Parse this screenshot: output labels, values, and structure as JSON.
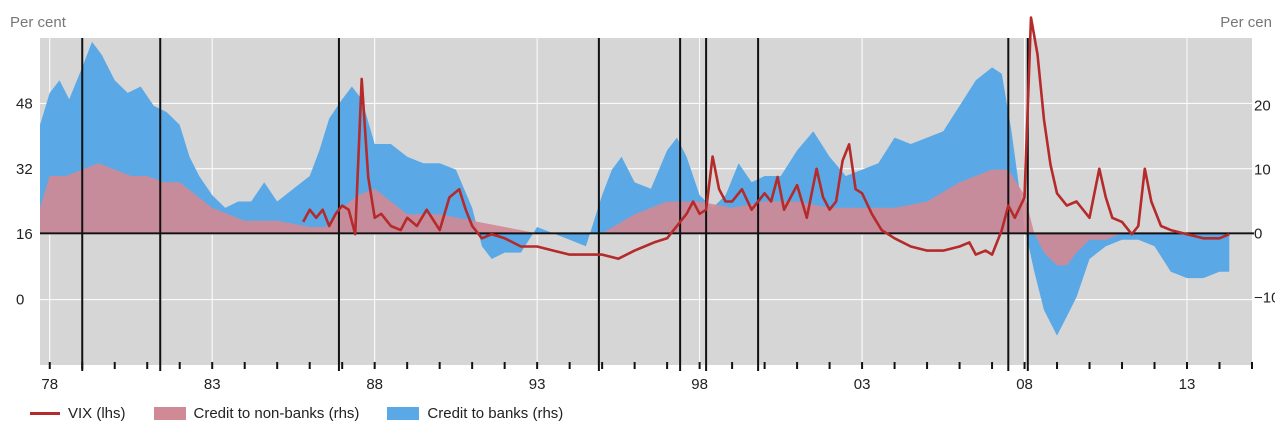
{
  "chart_data": {
    "type": "area",
    "left_axis_unit": "Per cent",
    "right_axis_unit": "Per cen",
    "x_ticks": [
      "78",
      "83",
      "88",
      "93",
      "98",
      "03",
      "08",
      "13"
    ],
    "x_tick_values": [
      1978,
      1983,
      1988,
      1993,
      1998,
      2003,
      2008,
      2013
    ],
    "xlim": [
      1977.7,
      2015.0
    ],
    "y_left": {
      "ticks": [
        "0",
        "16",
        "32",
        "48"
      ],
      "tick_values": [
        0,
        16,
        32,
        48
      ],
      "ylim": [
        -16,
        64
      ]
    },
    "y_right": {
      "ticks": [
        "−10",
        "0",
        "10",
        "20"
      ],
      "tick_values": [
        -10,
        0,
        10,
        20
      ],
      "ylim": [
        -20.6,
        30.6
      ]
    },
    "legend": [
      "VIX (lhs)",
      "Credit to non-banks (rhs)",
      "Credit to banks (rhs)"
    ],
    "colors": {
      "vix": "#b52a2a",
      "non_banks": "#d08a96",
      "banks": "#5aa9e6",
      "panel_bg": "#d6d6d6",
      "grid": "#ffffff"
    },
    "event_lines_x": [
      1979.0,
      1981.4,
      1986.9,
      1994.9,
      1997.4,
      1998.2,
      1999.8,
      2007.5,
      2008.1
    ],
    "series": [
      {
        "name": "Credit to banks (rhs)",
        "axis": "right",
        "x": [
          1977.7,
          1978.0,
          1978.3,
          1978.6,
          1979.0,
          1979.3,
          1979.6,
          1980.0,
          1980.4,
          1980.8,
          1981.2,
          1981.6,
          1982.0,
          1982.3,
          1982.6,
          1983.0,
          1983.4,
          1983.8,
          1984.2,
          1984.6,
          1985.0,
          1985.5,
          1986.0,
          1986.3,
          1986.6,
          1987.0,
          1987.3,
          1987.6,
          1988.0,
          1988.5,
          1989.0,
          1989.5,
          1990.0,
          1990.5,
          1991.0,
          1991.3,
          1991.6,
          1992.0,
          1992.5,
          1993.0,
          1993.5,
          1994.0,
          1994.5,
          1995.0,
          1995.3,
          1995.6,
          1996.0,
          1996.5,
          1997.0,
          1997.3,
          1997.6,
          1998.0,
          1998.4,
          1998.8,
          1999.2,
          1999.6,
          2000.0,
          2000.5,
          2001.0,
          2001.5,
          2002.0,
          2002.5,
          2003.0,
          2003.5,
          2004.0,
          2004.5,
          2005.0,
          2005.5,
          2006.0,
          2006.5,
          2007.0,
          2007.3,
          2007.6,
          2008.0,
          2008.3,
          2008.6,
          2009.0,
          2009.3,
          2009.6,
          2010.0,
          2010.5,
          2011.0,
          2011.5,
          2012.0,
          2012.5,
          2013.0,
          2013.5,
          2014.0,
          2014.3
        ],
        "values": [
          17,
          22,
          24,
          21,
          26,
          30,
          28,
          24,
          22,
          23,
          20,
          19,
          17,
          12,
          9,
          6,
          4,
          5,
          5,
          8,
          5,
          7,
          9,
          13,
          18,
          21,
          23,
          21,
          14,
          14,
          12,
          11,
          11,
          10,
          4,
          -2,
          -4,
          -3,
          -3,
          1,
          0,
          -1,
          -2,
          6,
          10,
          12,
          8,
          7,
          13,
          15,
          12,
          6,
          4,
          6,
          11,
          8,
          9,
          9,
          13,
          16,
          12,
          9,
          10,
          11,
          15,
          14,
          15,
          16,
          20,
          24,
          26,
          25,
          16,
          1,
          -6,
          -12,
          -16,
          -13,
          -10,
          -4,
          -2,
          -1,
          -1,
          -2,
          -6,
          -7,
          -7,
          -6,
          -6
        ]
      },
      {
        "name": "Credit to non-banks (rhs)",
        "axis": "right",
        "x": [
          1977.7,
          1978.0,
          1978.5,
          1979.0,
          1979.5,
          1980.0,
          1980.5,
          1981.0,
          1981.5,
          1982.0,
          1982.5,
          1983.0,
          1983.5,
          1984.0,
          1985.0,
          1986.0,
          1986.5,
          1987.0,
          1987.5,
          1988.0,
          1988.5,
          1989.0,
          1990.0,
          1991.0,
          1992.0,
          1993.0,
          1994.0,
          1995.0,
          1996.0,
          1997.0,
          1998.0,
          1999.0,
          2000.0,
          2001.0,
          2002.0,
          2003.0,
          2004.0,
          2005.0,
          2006.0,
          2006.5,
          2007.0,
          2007.5,
          2008.0,
          2008.3,
          2008.6,
          2009.0,
          2009.3,
          2009.6,
          2010.0,
          2010.5,
          2011.0,
          2012.0,
          2013.0,
          2014.0,
          2014.3
        ],
        "values": [
          4,
          9,
          9,
          10,
          11,
          10,
          9,
          9,
          8,
          8,
          6,
          4,
          3,
          2,
          2,
          1,
          1,
          4,
          6,
          7,
          5,
          3,
          3,
          2,
          1,
          0,
          0,
          0,
          3,
          5,
          5,
          4,
          5,
          5,
          4,
          4,
          4,
          5,
          8,
          9,
          10,
          10,
          6,
          0,
          -3,
          -5,
          -5,
          -3,
          -1,
          -1,
          0,
          0,
          0,
          0,
          0
        ]
      },
      {
        "name": "VIX (lhs)",
        "axis": "left",
        "x": [
          1985.8,
          1986.0,
          1986.2,
          1986.4,
          1986.6,
          1986.8,
          1987.0,
          1987.2,
          1987.4,
          1987.6,
          1987.8,
          1988.0,
          1988.2,
          1988.5,
          1988.8,
          1989.0,
          1989.3,
          1989.6,
          1990.0,
          1990.3,
          1990.6,
          1990.8,
          1991.0,
          1991.3,
          1991.6,
          1992.0,
          1992.5,
          1993.0,
          1993.5,
          1994.0,
          1994.5,
          1995.0,
          1995.5,
          1996.0,
          1996.3,
          1996.6,
          1997.0,
          1997.3,
          1997.6,
          1997.8,
          1998.0,
          1998.2,
          1998.4,
          1998.6,
          1998.8,
          1999.0,
          1999.3,
          1999.6,
          2000.0,
          2000.2,
          2000.4,
          2000.6,
          2000.8,
          2001.0,
          2001.3,
          2001.6,
          2001.8,
          2002.0,
          2002.2,
          2002.4,
          2002.6,
          2002.8,
          2003.0,
          2003.3,
          2003.6,
          2004.0,
          2004.5,
          2005.0,
          2005.5,
          2006.0,
          2006.3,
          2006.5,
          2006.8,
          2007.0,
          2007.3,
          2007.5,
          2007.7,
          2008.0,
          2008.2,
          2008.4,
          2008.6,
          2008.8,
          2009.0,
          2009.3,
          2009.6,
          2010.0,
          2010.3,
          2010.5,
          2010.7,
          2011.0,
          2011.3,
          2011.5,
          2011.7,
          2011.9,
          2012.2,
          2012.5,
          2013.0,
          2013.5,
          2014.0,
          2014.3
        ],
        "values": [
          19,
          22,
          20,
          22,
          18,
          21,
          23,
          22,
          16,
          54,
          30,
          20,
          21,
          18,
          17,
          20,
          18,
          22,
          17,
          25,
          27,
          22,
          18,
          15,
          16,
          15,
          13,
          13,
          12,
          11,
          11,
          11,
          10,
          12,
          13,
          14,
          15,
          18,
          21,
          24,
          21,
          22,
          35,
          27,
          24,
          24,
          27,
          22,
          26,
          24,
          30,
          22,
          25,
          28,
          20,
          32,
          25,
          22,
          24,
          34,
          38,
          27,
          26,
          21,
          17,
          15,
          13,
          12,
          12,
          13,
          14,
          11,
          12,
          11,
          17,
          23,
          20,
          25,
          69,
          60,
          44,
          33,
          26,
          23,
          24,
          20,
          32,
          25,
          20,
          19,
          16,
          18,
          32,
          24,
          18,
          17,
          16,
          15,
          15,
          16
        ]
      }
    ]
  },
  "legend": {
    "vix_label": "VIX (lhs)",
    "non_banks_label": "Credit to non-banks (rhs)",
    "banks_label": "Credit to banks (rhs)"
  }
}
